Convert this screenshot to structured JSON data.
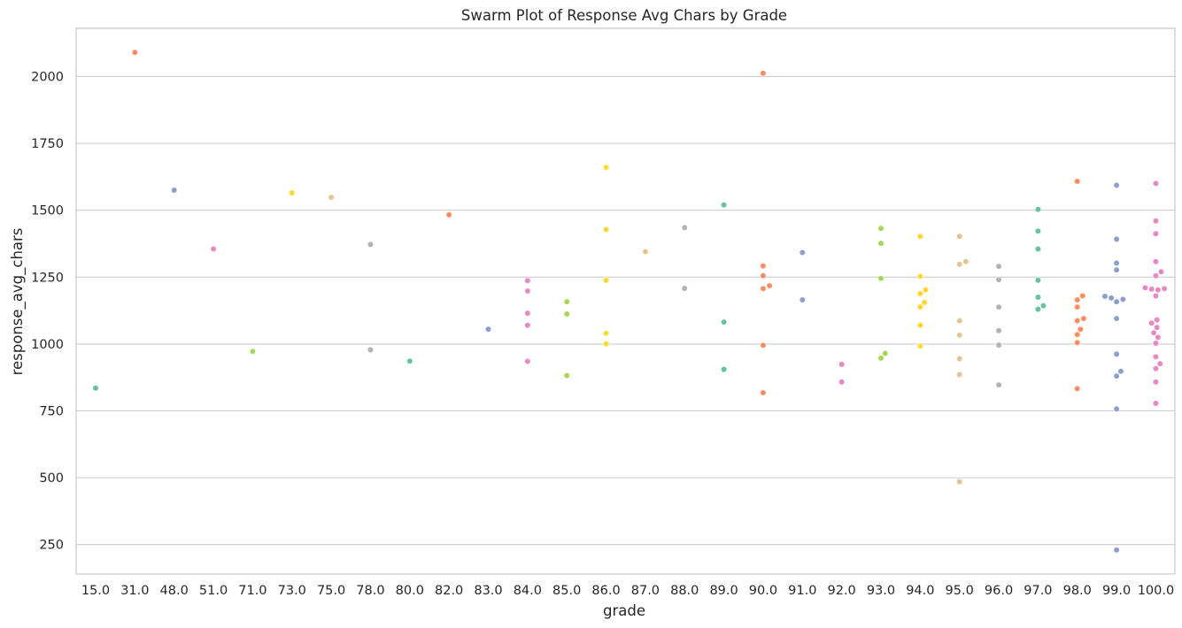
{
  "chart_data": {
    "type": "scatter",
    "subtype": "swarm",
    "title": "Swarm Plot of Response Avg Chars by Grade",
    "xlabel": "grade",
    "ylabel": "response_avg_chars",
    "categories": [
      "15.0",
      "31.0",
      "48.0",
      "51.0",
      "71.0",
      "73.0",
      "75.0",
      "78.0",
      "80.0",
      "82.0",
      "83.0",
      "84.0",
      "85.0",
      "86.0",
      "87.0",
      "88.0",
      "89.0",
      "90.0",
      "91.0",
      "92.0",
      "93.0",
      "94.0",
      "95.0",
      "96.0",
      "97.0",
      "98.0",
      "99.0",
      "100.0"
    ],
    "y_ticks": [
      250,
      500,
      750,
      1000,
      1250,
      1500,
      1750,
      2000
    ],
    "ylim": [
      140,
      2180
    ],
    "grid": "horizontal",
    "legend": "none",
    "palette": [
      "#66c2a5",
      "#fc8d62",
      "#8da0cb",
      "#e78ac3",
      "#a6d854",
      "#ffd92f",
      "#e5c494",
      "#b3b3b3"
    ],
    "groups": [
      {
        "grade": "15.0",
        "values": [
          835
        ]
      },
      {
        "grade": "31.0",
        "values": [
          2090
        ]
      },
      {
        "grade": "48.0",
        "values": [
          1575
        ]
      },
      {
        "grade": "51.0",
        "values": [
          1355
        ]
      },
      {
        "grade": "71.0",
        "values": [
          972
        ]
      },
      {
        "grade": "73.0",
        "values": [
          1565
        ]
      },
      {
        "grade": "75.0",
        "values": [
          1548
        ]
      },
      {
        "grade": "78.0",
        "values": [
          1372,
          978
        ]
      },
      {
        "grade": "80.0",
        "values": [
          936
        ]
      },
      {
        "grade": "82.0",
        "values": [
          1483
        ]
      },
      {
        "grade": "83.0",
        "values": [
          1055
        ]
      },
      {
        "grade": "84.0",
        "values": [
          1237,
          1198,
          1115,
          1070,
          935
        ]
      },
      {
        "grade": "85.0",
        "values": [
          1158,
          1112,
          882
        ]
      },
      {
        "grade": "86.0",
        "values": [
          1660,
          1428,
          1238,
          1040,
          1000
        ]
      },
      {
        "grade": "87.0",
        "values": [
          1345
        ]
      },
      {
        "grade": "88.0",
        "values": [
          1435,
          1208
        ]
      },
      {
        "grade": "89.0",
        "values": [
          1520,
          1082,
          905
        ]
      },
      {
        "grade": "90.0",
        "values": [
          2012,
          1292,
          1255,
          1218,
          1207,
          995,
          818
        ]
      },
      {
        "grade": "91.0",
        "values": [
          1342,
          1165
        ]
      },
      {
        "grade": "92.0",
        "values": [
          924,
          858
        ]
      },
      {
        "grade": "93.0",
        "values": [
          1432,
          1376,
          1245,
          965,
          947
        ]
      },
      {
        "grade": "94.0",
        "values": [
          1402,
          1253,
          1202,
          1188,
          1155,
          1138,
          1070,
          992
        ]
      },
      {
        "grade": "95.0",
        "values": [
          1402,
          1308,
          1298,
          1087,
          1033,
          945,
          886,
          485
        ]
      },
      {
        "grade": "96.0",
        "values": [
          1290,
          1240,
          1138,
          1050,
          996,
          847
        ]
      },
      {
        "grade": "97.0",
        "values": [
          1503,
          1422,
          1355,
          1238,
          1175,
          1143,
          1130
        ]
      },
      {
        "grade": "98.0",
        "values": [
          1608,
          1180,
          1165,
          1138,
          1095,
          1087,
          1055,
          1035,
          1005,
          833
        ]
      },
      {
        "grade": "99.0",
        "values": [
          1593,
          1392,
          1302,
          1277,
          1178,
          1172,
          1167,
          1158,
          1095,
          962,
          898,
          880,
          757,
          230
        ]
      },
      {
        "grade": "100.0",
        "values": [
          1600,
          1460,
          1412,
          1308,
          1270,
          1255,
          1210,
          1207,
          1205,
          1202,
          1180,
          1090,
          1078,
          1062,
          1042,
          1025,
          1003,
          952,
          926,
          908,
          858,
          778
        ]
      }
    ]
  }
}
